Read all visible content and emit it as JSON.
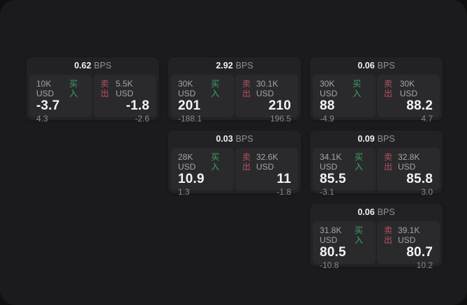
{
  "labels": {
    "bps_unit": "BPS",
    "buy": "买入",
    "sell": "卖出"
  },
  "colors": {
    "buy": "#3ea563",
    "sell": "#b9515f",
    "panel_bg": "#1b1b1d",
    "card_bg": "#222225",
    "tile_bg": "#2a2a2d"
  },
  "cards": [
    {
      "row": 1,
      "col": 1,
      "bps": "0.62",
      "buy": {
        "size": "10K USD",
        "value": "-3.7",
        "delta": "4.3"
      },
      "sell": {
        "size": "5.5K USD",
        "value": "-1.8",
        "delta": "-2.6"
      }
    },
    {
      "row": 1,
      "col": 2,
      "bps": "2.92",
      "buy": {
        "size": "30K USD",
        "value": "201",
        "delta": "-188.1"
      },
      "sell": {
        "size": "30.1K USD",
        "value": "210",
        "delta": "196.5"
      }
    },
    {
      "row": 1,
      "col": 3,
      "bps": "0.06",
      "buy": {
        "size": "30K USD",
        "value": "88",
        "delta": "-4.9"
      },
      "sell": {
        "size": "30K USD",
        "value": "88.2",
        "delta": "4.7"
      }
    },
    {
      "row": 2,
      "col": 2,
      "bps": "0.03",
      "buy": {
        "size": "28K USD",
        "value": "10.9",
        "delta": "1.3"
      },
      "sell": {
        "size": "32.6K USD",
        "value": "11",
        "delta": "-1.8"
      }
    },
    {
      "row": 2,
      "col": 3,
      "bps": "0.09",
      "buy": {
        "size": "34.1K USD",
        "value": "85.5",
        "delta": "-3.1"
      },
      "sell": {
        "size": "32.8K USD",
        "value": "85.8",
        "delta": "3.0"
      }
    },
    {
      "row": 3,
      "col": 3,
      "bps": "0.06",
      "buy": {
        "size": "31.8K USD",
        "value": "80.5",
        "delta": "-10.8"
      },
      "sell": {
        "size": "39.1K USD",
        "value": "80.7",
        "delta": "10.2"
      }
    }
  ]
}
